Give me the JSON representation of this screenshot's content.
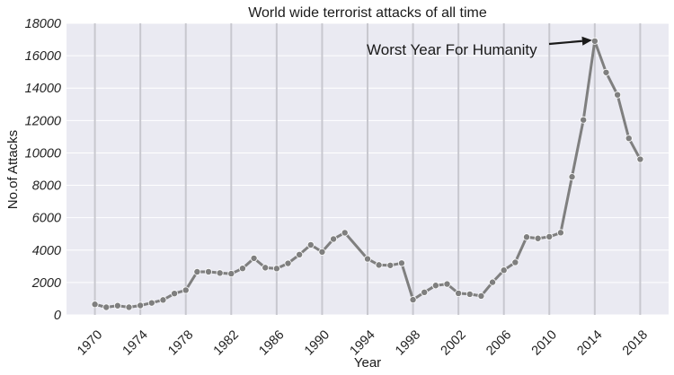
{
  "chart_data": {
    "type": "line",
    "title": "World wide terrorist attacks of all time",
    "xlabel": "Year",
    "ylabel": "No.of Attacks",
    "xlim": [
      1967.5,
      2020.5
    ],
    "ylim": [
      0,
      18000
    ],
    "yticks": [
      0,
      2000,
      4000,
      6000,
      8000,
      10000,
      12000,
      14000,
      16000,
      18000
    ],
    "xticks": [
      1970,
      1974,
      1978,
      1982,
      1986,
      1990,
      1994,
      1998,
      2002,
      2006,
      2010,
      2014,
      2018
    ],
    "grid": true,
    "colors": {
      "background": "#eaeaf2",
      "grid": "#ffffff",
      "vline": "#c8c8cf",
      "series": "#7f7f7f",
      "arrow": "#1a1a1a"
    },
    "x": [
      1970,
      1971,
      1972,
      1973,
      1974,
      1975,
      1976,
      1977,
      1978,
      1979,
      1980,
      1981,
      1982,
      1983,
      1984,
      1985,
      1986,
      1987,
      1988,
      1989,
      1990,
      1991,
      1992,
      1994,
      1995,
      1996,
      1997,
      1998,
      1999,
      2000,
      2001,
      2002,
      2003,
      2004,
      2005,
      2006,
      2007,
      2008,
      2009,
      2010,
      2011,
      2012,
      2013,
      2014,
      2015,
      2016,
      2017,
      2018
    ],
    "series": [
      {
        "values": [
          651,
          471,
          568,
          473,
          581,
          740,
          923,
          1319,
          1526,
          2661,
          2662,
          2586,
          2544,
          2870,
          3495,
          2915,
          2860,
          3183,
          3721,
          4324,
          3887,
          4683,
          5071,
          3456,
          3081,
          3058,
          3197,
          934,
          1395,
          1814,
          1906,
          1333,
          1278,
          1166,
          2017,
          2758,
          3242,
          4805,
          4721,
          4826,
          5076,
          8522,
          12036,
          16903,
          14965,
          13587,
          10900,
          9607
        ]
      }
    ],
    "annotation": {
      "text": "Worst Year For Humanity",
      "x": 2014,
      "y": 16903
    }
  }
}
